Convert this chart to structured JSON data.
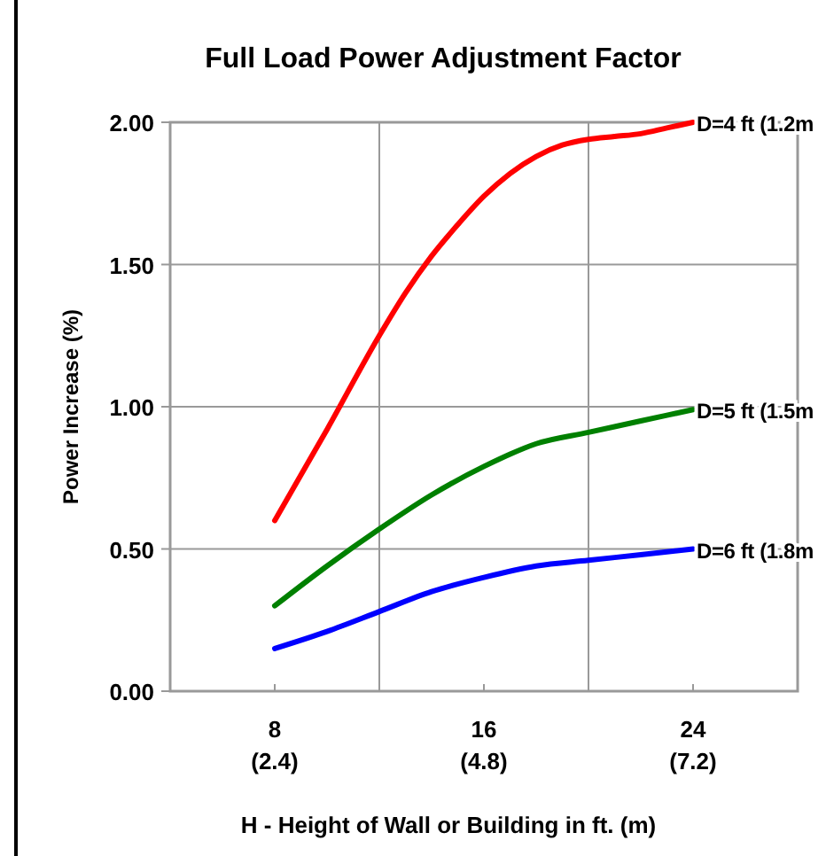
{
  "chart_data": {
    "type": "line",
    "title": "Full Load Power Adjustment Factor",
    "xlabel": "H - Height of Wall or Building in ft. (m)",
    "ylabel": "Power Increase (%)",
    "xlim": [
      4,
      28
    ],
    "xticks": [
      8,
      {
        "value": 12,
        "label": null
      },
      16,
      {
        "value": 20,
        "label": null
      },
      24,
      {
        "value": 28,
        "label": null
      }
    ],
    "x2lim": [
      1.2,
      8.4
    ],
    "x2ticks": [
      {
        "value": 2.4,
        "label": "(2.4)"
      },
      {
        "value": 4.8,
        "label": "(4.8)"
      },
      {
        "value": 7.2,
        "label": "(7.2)"
      }
    ],
    "ylim": [
      0,
      2
    ],
    "yticks": [
      {
        "value": 0,
        "label": "0.00"
      },
      {
        "value": 0.5,
        "label": "0.50"
      },
      {
        "value": 1,
        "label": "1.00"
      },
      {
        "value": 1.5,
        "label": "1.50"
      },
      {
        "value": 2,
        "label": "2.00"
      }
    ],
    "grid": true,
    "marker": "none",
    "line_style": "solid",
    "series": [
      {
        "name": "D=4 ft (1.2m",
        "color": "#ff0000",
        "x": [
          8,
          10,
          12,
          13,
          14,
          15,
          16,
          17,
          18,
          19,
          20,
          21,
          22,
          23,
          24
        ],
        "values": [
          0.6,
          0.92,
          1.25,
          1.4,
          1.53,
          1.64,
          1.74,
          1.82,
          1.88,
          1.92,
          1.94,
          1.95,
          1.96,
          1.98,
          2.0
        ]
      },
      {
        "name": "D=5 ft (1.5m",
        "color": "#008000",
        "x": [
          8,
          10,
          12,
          14,
          16,
          18,
          20,
          22,
          24
        ],
        "values": [
          0.3,
          0.44,
          0.57,
          0.69,
          0.79,
          0.87,
          0.91,
          0.95,
          0.99
        ]
      },
      {
        "name": "D=6 ft (1.8m",
        "color": "#0000ff",
        "x": [
          8,
          10,
          12,
          14,
          16,
          18,
          20,
          22,
          24
        ],
        "values": [
          0.15,
          0.21,
          0.28,
          0.35,
          0.4,
          0.44,
          0.46,
          0.48,
          0.5
        ]
      }
    ]
  }
}
